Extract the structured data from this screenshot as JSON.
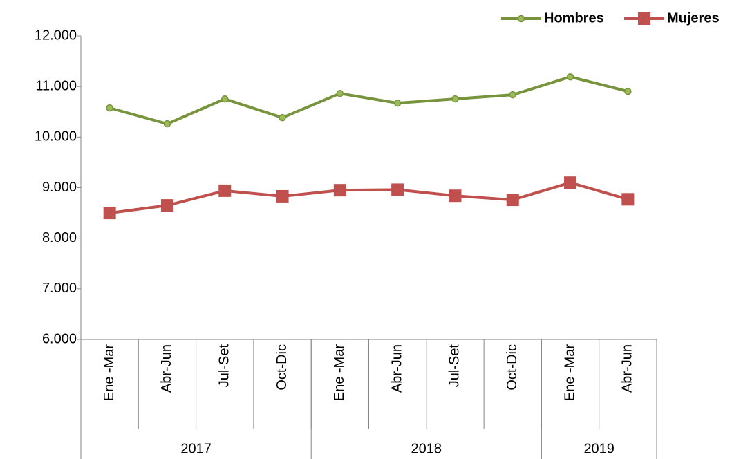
{
  "chart_data": {
    "type": "line",
    "categories": [
      "Ene -Mar",
      "Abr-Jun",
      "Jul-Set",
      "Oct-Dic",
      "Ene -Mar",
      "Abr-Jun",
      "Jul-Set",
      "Oct-Dic",
      "Ene -Mar",
      "Abr-Jun"
    ],
    "x_groups": [
      {
        "label": "2017",
        "count": 4
      },
      {
        "label": "2018",
        "count": 4
      },
      {
        "label": "2019",
        "count": 2
      }
    ],
    "series": [
      {
        "name": "Hombres",
        "color": "#77933c",
        "marker": "circle",
        "values": [
          10577,
          10262,
          10754,
          10385,
          10863,
          10672,
          10754,
          10836,
          11191,
          10904
        ]
      },
      {
        "name": "Mujeres",
        "color": "#c0504d",
        "marker": "square",
        "values": [
          8500,
          8650,
          8940,
          8830,
          8950,
          8960,
          8840,
          8760,
          9100,
          8770
        ]
      }
    ],
    "ylim": [
      6000,
      12000
    ],
    "yticks": [
      {
        "value": 6000,
        "label": "6.000"
      },
      {
        "value": 7000,
        "label": "7.000"
      },
      {
        "value": 8000,
        "label": "8.000"
      },
      {
        "value": 9000,
        "label": "9.000"
      },
      {
        "value": 10000,
        "label": "10.000"
      },
      {
        "value": 11000,
        "label": "11.000"
      },
      {
        "value": 12000,
        "label": "12.000"
      }
    ],
    "grid": false,
    "legend": "top-right"
  }
}
